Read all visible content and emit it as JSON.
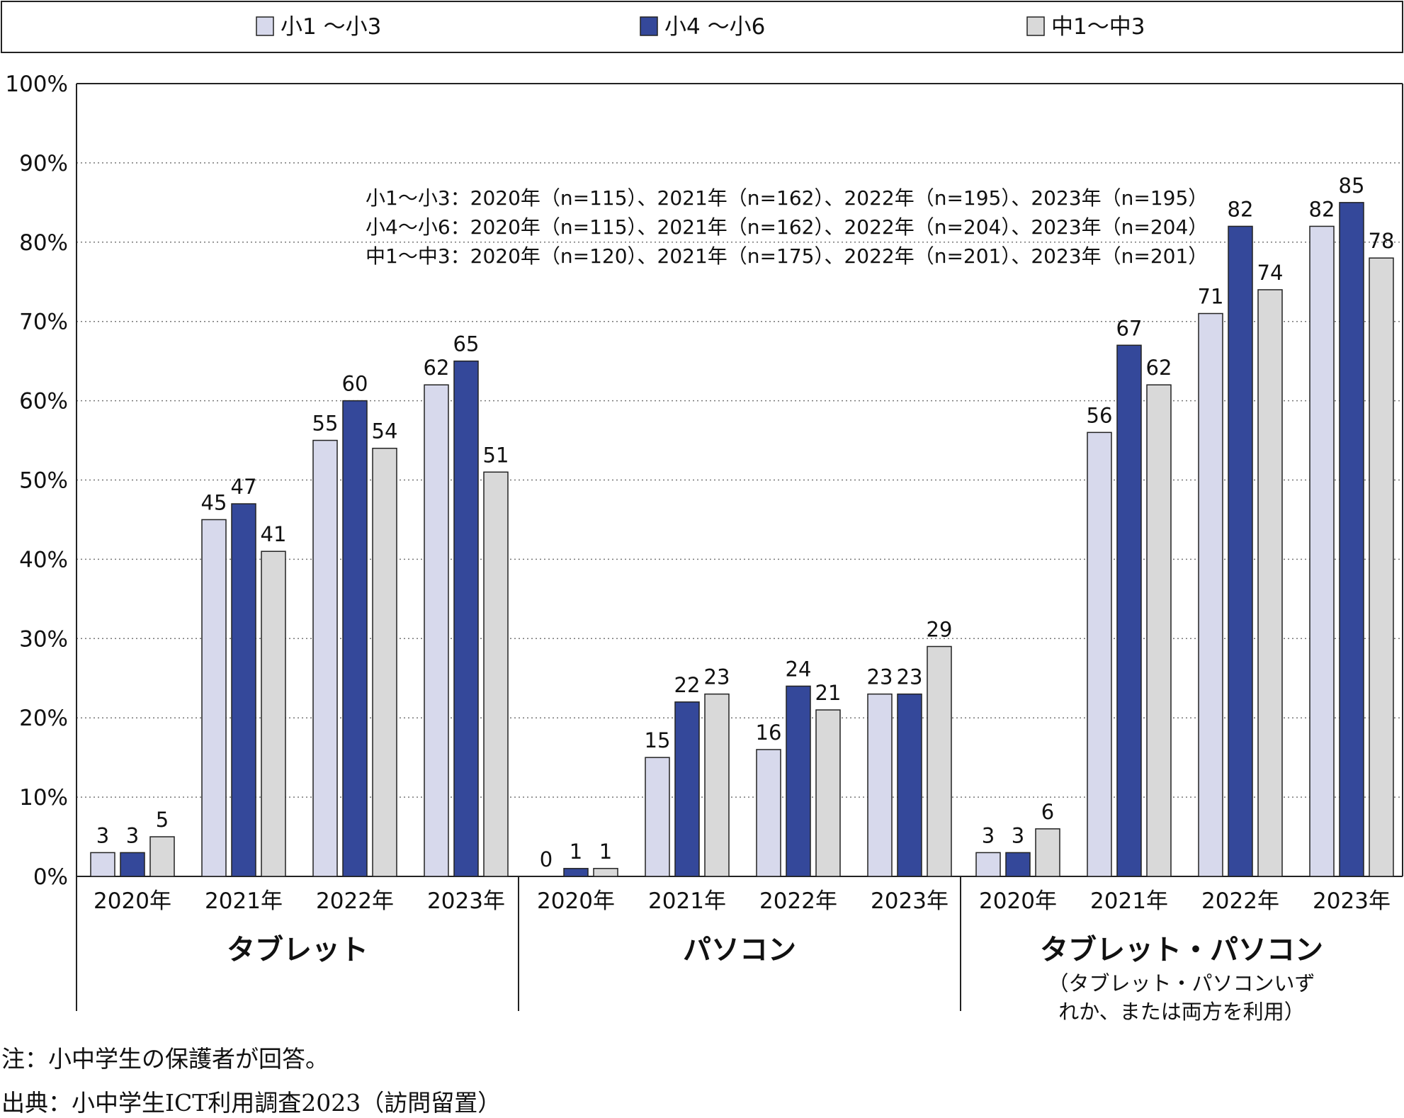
{
  "legend": {
    "items": [
      {
        "label": "小1 ～小3",
        "color": "#d7d9ec"
      },
      {
        "label": "小4 ～小6",
        "color": "#34489a"
      },
      {
        "label": "中1～中3",
        "color": "#d9d9d9"
      }
    ]
  },
  "sample_sizes": [
    "小1～小3：2020年（n=115）、2021年（n=162）、2022年（n=195）、2023年（n=195）",
    "小4～小6：2020年（n=115）、2021年（n=162）、2022年（n=204）、2023年（n=204）",
    "中1～中3：2020年（n=120）、2021年（n=175）、2022年（n=201）、2023年（n=201）"
  ],
  "notes": {
    "note": "注：小中学生の保護者が回答。",
    "source": "出典：小中学生ICT利用調査2023（訪問留置）"
  },
  "chart_data": {
    "type": "bar",
    "ylim": [
      0,
      100
    ],
    "y_ticks": [
      "0%",
      "10%",
      "20%",
      "30%",
      "40%",
      "50%",
      "60%",
      "70%",
      "80%",
      "90%",
      "100%"
    ],
    "grid": true,
    "legend_position": "top",
    "groups": [
      {
        "label": "タブレット",
        "sublabel": "",
        "years": [
          "2020年",
          "2021年",
          "2022年",
          "2023年"
        ],
        "series": [
          {
            "name": "小1 ～小3",
            "values": [
              3,
              45,
              55,
              62
            ]
          },
          {
            "name": "小4 ～小6",
            "values": [
              3,
              47,
              60,
              65
            ]
          },
          {
            "name": "中1～中3",
            "values": [
              5,
              41,
              54,
              51
            ]
          }
        ]
      },
      {
        "label": "パソコン",
        "sublabel": "",
        "years": [
          "2020年",
          "2021年",
          "2022年",
          "2023年"
        ],
        "series": [
          {
            "name": "小1 ～小3",
            "values": [
              0,
              15,
              16,
              23
            ]
          },
          {
            "name": "小4 ～小6",
            "values": [
              1,
              22,
              24,
              23
            ]
          },
          {
            "name": "中1～中3",
            "values": [
              1,
              23,
              21,
              29
            ]
          }
        ]
      },
      {
        "label": "タブレット・パソコン",
        "sublabel": [
          "（タブレット・パソコンいず",
          "れか、または両方を利用）"
        ],
        "years": [
          "2020年",
          "2021年",
          "2022年",
          "2023年"
        ],
        "series": [
          {
            "name": "小1 ～小3",
            "values": [
              3,
              56,
              71,
              82
            ]
          },
          {
            "name": "小4 ～小6",
            "values": [
              3,
              67,
              82,
              85
            ]
          },
          {
            "name": "中1～中3",
            "values": [
              6,
              62,
              74,
              78
            ]
          }
        ]
      }
    ]
  }
}
